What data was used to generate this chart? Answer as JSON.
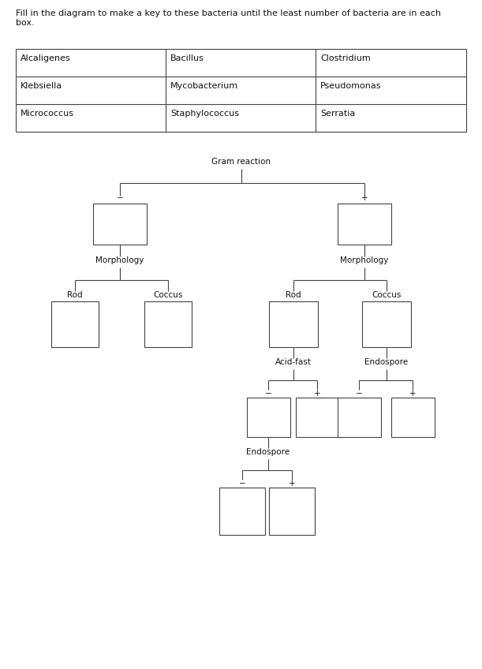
{
  "title_text": "Fill in the diagram to make a key to these bacteria until the least number of bacteria are in each\nbox.",
  "table_rows": [
    [
      "Alcaligenes",
      "Bacillus",
      "Clostridium"
    ],
    [
      "Klebsiella",
      "Mycobacterium",
      "Pseudomonas"
    ],
    [
      "Micrococcus",
      "Staphylococcus",
      "Serratia"
    ]
  ],
  "background": "#ffffff",
  "line_color": "#444444",
  "text_color": "#111111",
  "box_edge_color": "#444444",
  "font_size": 7.5,
  "label_font_size": 7.5,
  "table_font_size": 8.0
}
